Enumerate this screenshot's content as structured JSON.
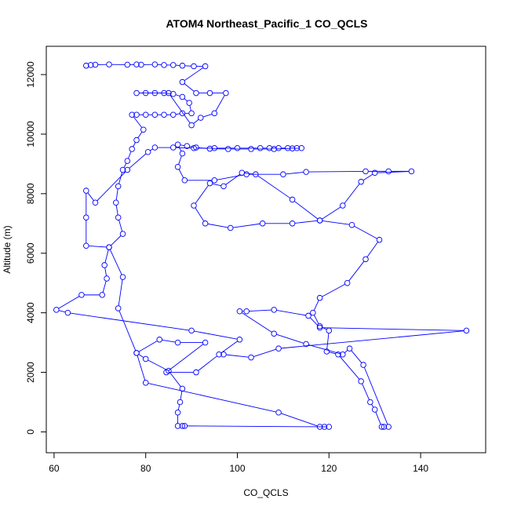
{
  "chart_data": {
    "type": "scatter",
    "title": "ATOM4 Northeast_Pacific_1 CO_QCLS",
    "xlabel": "CO_QCLS",
    "ylabel": "Altitude (m)",
    "xlim": [
      58.3,
      154.2
    ],
    "ylim": [
      -700,
      12950
    ],
    "xticks": [
      60,
      80,
      100,
      120,
      140
    ],
    "yticks": [
      0,
      2000,
      4000,
      6000,
      8000,
      10000,
      12000
    ],
    "grid": false,
    "legend": "none",
    "series": [
      {
        "color": "#0000ff",
        "marker": "open-circle",
        "line": true,
        "points": [
          [
            67.0,
            12300
          ],
          [
            68.0,
            12320
          ],
          [
            69.0,
            12330
          ],
          [
            72.0,
            12340
          ],
          [
            76.0,
            12330
          ],
          [
            78.0,
            12340
          ],
          [
            79.0,
            12330
          ],
          [
            82.0,
            12340
          ],
          [
            84.0,
            12320
          ],
          [
            86.0,
            12320
          ],
          [
            88.0,
            12300
          ],
          [
            90.5,
            12280
          ],
          [
            93.0,
            12280
          ],
          [
            88.0,
            11750
          ],
          [
            91.0,
            11380
          ],
          [
            94.0,
            11380
          ],
          [
            97.5,
            11380
          ],
          [
            95.0,
            10700
          ],
          [
            92.0,
            10550
          ],
          [
            90.0,
            10300
          ],
          [
            85.0,
            11380
          ],
          [
            82.0,
            11380
          ],
          [
            80.0,
            11380
          ],
          [
            78.0,
            11380
          ],
          [
            84.0,
            11380
          ],
          [
            86.0,
            11350
          ],
          [
            88.0,
            11250
          ],
          [
            89.5,
            11050
          ],
          [
            90.0,
            10700
          ],
          [
            88.0,
            10700
          ],
          [
            86.0,
            10650
          ],
          [
            84.0,
            10650
          ],
          [
            82.0,
            10650
          ],
          [
            80.0,
            10650
          ],
          [
            78.0,
            10650
          ],
          [
            77.0,
            10650
          ],
          [
            79.5,
            10150
          ],
          [
            78.0,
            9800
          ],
          [
            77.0,
            9500
          ],
          [
            76.0,
            9100
          ],
          [
            75.0,
            8800
          ],
          [
            74.0,
            8250
          ],
          [
            73.5,
            7700
          ],
          [
            74.0,
            7200
          ],
          [
            75.0,
            6650
          ],
          [
            72.0,
            6200
          ],
          [
            71.0,
            5600
          ],
          [
            71.5,
            5150
          ],
          [
            70.5,
            4600
          ],
          [
            66.0,
            4600
          ],
          [
            60.5,
            4100
          ],
          [
            63.0,
            4000
          ],
          [
            90.0,
            3400
          ],
          [
            100.5,
            3100
          ],
          [
            96.0,
            2600
          ],
          [
            91.0,
            2000
          ],
          [
            84.5,
            2000
          ],
          [
            93.0,
            3000
          ],
          [
            87.0,
            3000
          ],
          [
            83.0,
            3100
          ],
          [
            78.0,
            2650
          ],
          [
            80.0,
            2450
          ],
          [
            85.0,
            2050
          ],
          [
            88.0,
            1450
          ],
          [
            87.5,
            1000
          ],
          [
            87.0,
            650
          ],
          [
            87.0,
            200
          ],
          [
            88.0,
            200
          ],
          [
            88.5,
            200
          ],
          [
            119.0,
            170
          ],
          [
            120.0,
            170
          ],
          [
            118.0,
            170
          ],
          [
            109.0,
            650
          ],
          [
            80.0,
            1650
          ],
          [
            78.0,
            2650
          ],
          [
            74.0,
            4150
          ],
          [
            75.0,
            5200
          ],
          [
            72.0,
            6200
          ],
          [
            67.0,
            6250
          ],
          [
            67.0,
            7200
          ],
          [
            67.0,
            8100
          ],
          [
            69.0,
            7700
          ],
          [
            76.0,
            8800
          ],
          [
            80.5,
            9400
          ],
          [
            82.0,
            9550
          ],
          [
            86.0,
            9550
          ],
          [
            90.5,
            9530
          ],
          [
            95.0,
            9530
          ],
          [
            100.0,
            9530
          ],
          [
            105.0,
            9530
          ],
          [
            107.0,
            9530
          ],
          [
            109.0,
            9530
          ],
          [
            111.0,
            9530
          ],
          [
            113.0,
            9530
          ],
          [
            114.0,
            9530
          ],
          [
            112.0,
            9520
          ],
          [
            108.0,
            9500
          ],
          [
            103.0,
            9500
          ],
          [
            98.0,
            9500
          ],
          [
            94.0,
            9510
          ],
          [
            91.0,
            9550
          ],
          [
            89.0,
            9600
          ],
          [
            87.0,
            9650
          ],
          [
            88.0,
            9350
          ],
          [
            87.0,
            8900
          ],
          [
            88.5,
            8450
          ],
          [
            95.0,
            8450
          ],
          [
            102.0,
            8650
          ],
          [
            110.0,
            8650
          ],
          [
            115.0,
            8730
          ],
          [
            128.0,
            8750
          ],
          [
            133.0,
            8750
          ],
          [
            138.0,
            8750
          ],
          [
            130.0,
            8700
          ],
          [
            127.0,
            8400
          ],
          [
            123.0,
            7600
          ],
          [
            118.0,
            7100
          ],
          [
            112.0,
            7800
          ],
          [
            104.0,
            8650
          ],
          [
            101.0,
            8700
          ],
          [
            97.0,
            8250
          ],
          [
            94.0,
            8350
          ],
          [
            90.5,
            7600
          ],
          [
            93.0,
            7000
          ],
          [
            98.5,
            6850
          ],
          [
            105.5,
            7000
          ],
          [
            112.0,
            7000
          ],
          [
            118.0,
            7100
          ],
          [
            125.0,
            6950
          ],
          [
            131.0,
            6450
          ],
          [
            128.0,
            5800
          ],
          [
            124.0,
            5000
          ],
          [
            118.0,
            4500
          ],
          [
            116.5,
            4000
          ],
          [
            118.0,
            3550
          ],
          [
            120.0,
            3400
          ],
          [
            119.5,
            2700
          ],
          [
            122.0,
            2600
          ],
          [
            127.0,
            1700
          ],
          [
            129.0,
            1000
          ],
          [
            130.0,
            750
          ],
          [
            131.5,
            170
          ],
          [
            132.0,
            170
          ],
          [
            133.0,
            170
          ],
          [
            127.5,
            2250
          ],
          [
            124.5,
            2800
          ],
          [
            123.0,
            2600
          ],
          [
            115.0,
            2950
          ],
          [
            108.0,
            3300
          ],
          [
            100.5,
            4050
          ],
          [
            102.0,
            4050
          ],
          [
            108.0,
            4100
          ],
          [
            115.5,
            3900
          ],
          [
            118.0,
            3500
          ],
          [
            150.0,
            3400
          ],
          [
            109.0,
            2800
          ],
          [
            103.0,
            2500
          ],
          [
            97.0,
            2600
          ]
        ]
      }
    ]
  }
}
